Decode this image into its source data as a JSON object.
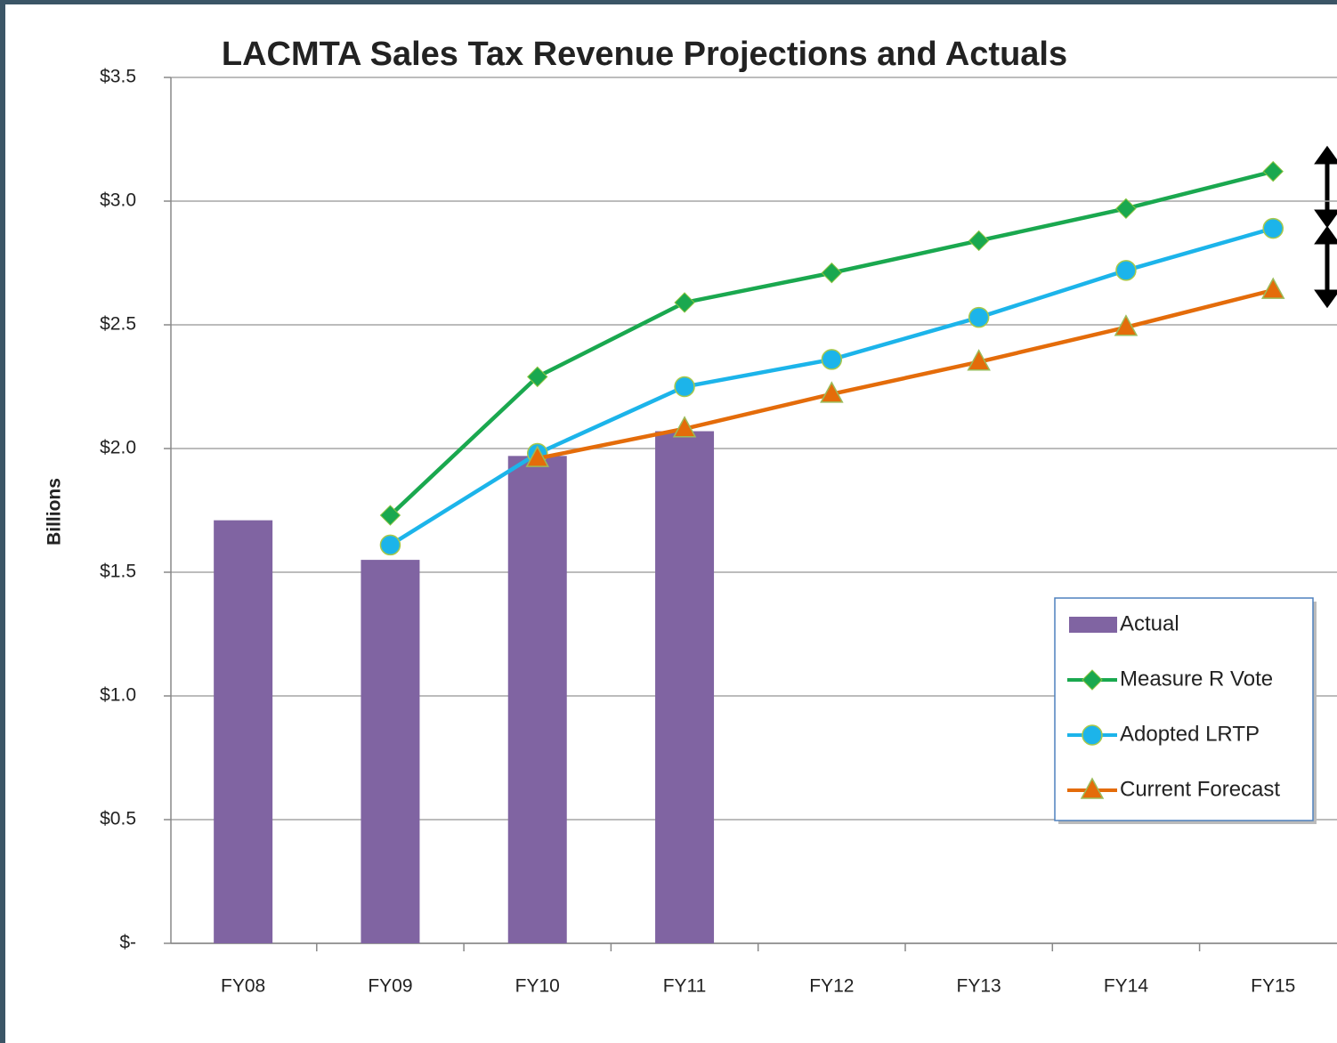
{
  "chart_data": {
    "type": "bar",
    "title": "LACMTA Sales Tax Revenue Projections and Actuals",
    "y_label": "Billions",
    "categories": [
      "FY08",
      "FY09",
      "FY10",
      "FY11",
      "FY12",
      "FY13",
      "FY14",
      "FY15"
    ],
    "series": [
      {
        "name": "Actual",
        "type": "bar",
        "color": "#8064a2",
        "values": [
          1.71,
          1.55,
          1.97,
          2.07,
          null,
          null,
          null,
          null
        ]
      },
      {
        "name": "Measure R Vote",
        "type": "line",
        "marker": "diamond",
        "color": "#1aa84f",
        "values": [
          null,
          1.73,
          2.29,
          2.59,
          2.71,
          2.84,
          2.97,
          3.12
        ]
      },
      {
        "name": "Adopted LRTP",
        "type": "line",
        "marker": "circle",
        "color": "#1cb4ea",
        "values": [
          null,
          1.61,
          1.98,
          2.25,
          2.36,
          2.53,
          2.72,
          2.89
        ]
      },
      {
        "name": "Current Forecast",
        "type": "line",
        "marker": "triangle",
        "color": "#e46c0a",
        "values": [
          null,
          null,
          1.96,
          2.08,
          2.22,
          2.35,
          2.49,
          2.64
        ]
      }
    ],
    "ylim": [
      0,
      3.5
    ],
    "yticks": [
      {
        "value": 0,
        "label": "$-"
      },
      {
        "value": 0.5,
        "label": "$0.5"
      },
      {
        "value": 1,
        "label": "$1.0"
      },
      {
        "value": 1.5,
        "label": "$1.5"
      },
      {
        "value": 2,
        "label": "$2.0"
      },
      {
        "value": 2.5,
        "label": "$2.5"
      },
      {
        "value": 3,
        "label": "$3.0"
      },
      {
        "value": 3.5,
        "label": "$3.5"
      }
    ],
    "grid": true,
    "legend": "lower right"
  }
}
